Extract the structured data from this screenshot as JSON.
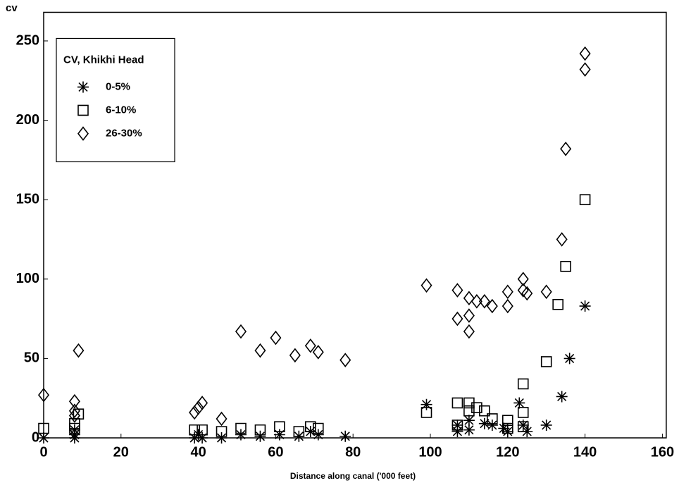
{
  "chart_data": {
    "type": "scatter",
    "y_label": "cv",
    "x_label": "Distance along canal ('000 feet)",
    "legend_title": "CV, Khikhi Head",
    "legend": "upper left",
    "xlim": [
      0,
      161
    ],
    "ylim": [
      0,
      268
    ],
    "xticks": [
      0,
      20,
      40,
      60,
      80,
      100,
      120,
      140,
      160
    ],
    "yticks": [
      0,
      50,
      100,
      150,
      200,
      250
    ],
    "grid": false,
    "series": [
      {
        "name": "0-5%",
        "color": "#000000",
        "marker": "star",
        "x": [
          0,
          8,
          8,
          8,
          39,
          40,
          41,
          46,
          51,
          56,
          61,
          66,
          69,
          71,
          78,
          99,
          107,
          107,
          110,
          110,
          114,
          116,
          119,
          120,
          123,
          124,
          125,
          130,
          134,
          136,
          140
        ],
        "values": [
          0,
          0,
          2,
          5,
          0,
          2,
          0,
          0,
          2,
          1,
          2,
          1,
          4,
          2,
          1,
          21,
          8,
          4,
          5,
          11,
          9,
          8,
          6,
          4,
          22,
          8,
          4,
          8,
          26,
          50,
          83
        ]
      },
      {
        "name": "6-10%",
        "color": "#000000",
        "marker": "square",
        "x": [
          0,
          9,
          8,
          8,
          39,
          41,
          46,
          51,
          56,
          61,
          66,
          69,
          71,
          99,
          107,
          107,
          110,
          110,
          112,
          114,
          116,
          120,
          120,
          124,
          124,
          124,
          130,
          133,
          135,
          140
        ],
        "values": [
          6,
          15,
          6,
          9,
          5,
          5,
          4,
          6,
          5,
          7,
          4,
          7,
          6,
          16,
          22,
          8,
          22,
          17,
          19,
          17,
          12,
          11,
          6,
          34,
          16,
          7,
          48,
          84,
          108,
          150
        ]
      },
      {
        "name": "26-30%",
        "color": "#000000",
        "marker": "diamond",
        "x": [
          0,
          8,
          9,
          8,
          8,
          39,
          40,
          41,
          46,
          51,
          56,
          60,
          65,
          69,
          71,
          78,
          99,
          107,
          107,
          110,
          110,
          110,
          112,
          114,
          116,
          120,
          120,
          124,
          124,
          125,
          130,
          134,
          135,
          140,
          140
        ],
        "values": [
          27,
          23,
          55,
          17,
          14,
          16,
          19,
          22,
          12,
          67,
          55,
          63,
          52,
          58,
          54,
          49,
          96,
          93,
          75,
          88,
          77,
          67,
          86,
          86,
          83,
          92,
          83,
          100,
          93,
          91,
          92,
          125,
          182,
          232,
          242
        ]
      }
    ]
  }
}
